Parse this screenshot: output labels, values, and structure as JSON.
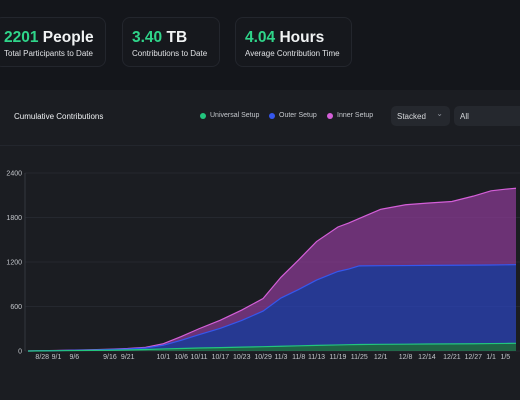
{
  "stats": [
    {
      "value": "2201",
      "unit": "People",
      "caption": "Total Participants to Date"
    },
    {
      "value": "3.40",
      "unit": "TB",
      "caption": "Contributions to Date"
    },
    {
      "value": "4.04",
      "unit": "Hours",
      "caption": "Average Contribution Time"
    }
  ],
  "controls": {
    "mode_selected": "Stacked",
    "range_selected": "All"
  },
  "colors": {
    "accent_green": "#2fd58a",
    "universal": "#22c57e",
    "outer": "#3557ee",
    "inner": "#d45fd8"
  },
  "chart_data": {
    "type": "area",
    "stacked": true,
    "title": "Cumulative Contributions",
    "legend_position": "top-right",
    "grid": "horizontal",
    "ylim": [
      0,
      2400
    ],
    "yticks": [
      0,
      600,
      1200,
      1800,
      2400
    ],
    "xticks": [
      "8/28",
      "9/1",
      "9/6",
      "9/16",
      "9/21",
      "10/1",
      "10/6",
      "10/11",
      "10/17",
      "10/23",
      "10/29",
      "11/3",
      "11/8",
      "11/13",
      "11/19",
      "11/25",
      "12/1",
      "12/8",
      "12/14",
      "12/21",
      "12/27",
      "1/1",
      "1/5"
    ],
    "x": [
      "8/24",
      "8/28",
      "9/1",
      "9/6",
      "9/11",
      "9/16",
      "9/21",
      "9/26",
      "10/1",
      "10/6",
      "10/11",
      "10/17",
      "10/23",
      "10/29",
      "11/3",
      "11/8",
      "11/13",
      "11/19",
      "11/22",
      "11/25",
      "12/1",
      "12/8",
      "12/14",
      "12/21",
      "12/27",
      "1/1",
      "1/5",
      "1/8"
    ],
    "series": [
      {
        "name": "Universal Setup",
        "values": [
          0,
          2,
          4,
          6,
          8,
          10,
          14,
          20,
          28,
          34,
          40,
          46,
          52,
          58,
          64,
          70,
          76,
          82,
          85,
          88,
          90,
          92,
          94,
          96,
          98,
          100,
          102,
          104
        ]
      },
      {
        "name": "Outer Setup",
        "values": [
          0,
          1,
          2,
          4,
          6,
          10,
          14,
          20,
          50,
          110,
          180,
          260,
          360,
          480,
          650,
          760,
          880,
          990,
          1020,
          1060,
          1060,
          1060,
          1060,
          1060,
          1060,
          1060,
          1060,
          1060
        ]
      },
      {
        "name": "Inner Setup",
        "values": [
          0,
          0,
          1,
          2,
          3,
          4,
          6,
          10,
          20,
          50,
          80,
          110,
          140,
          170,
          280,
          400,
          520,
          600,
          620,
          640,
          760,
          820,
          840,
          860,
          930,
          1000,
          1020,
          1030
        ]
      }
    ]
  }
}
